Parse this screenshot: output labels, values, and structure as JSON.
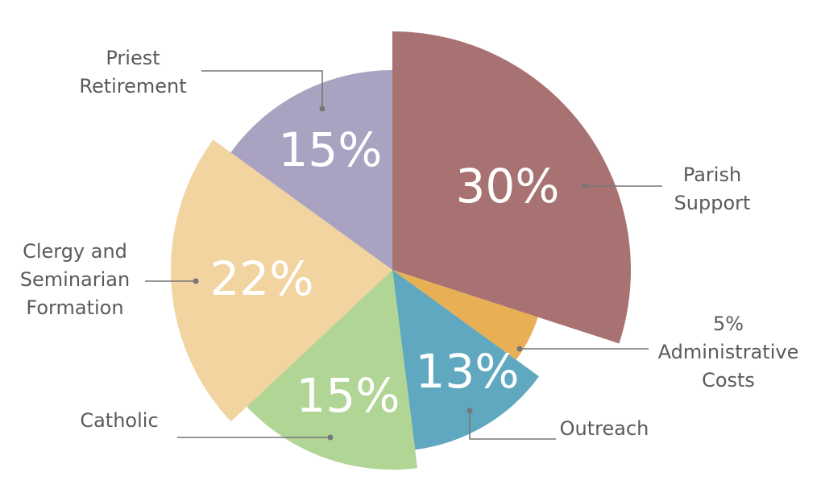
{
  "chart_data": {
    "type": "pie",
    "categories": [
      [
        "Parish",
        "Support"
      ],
      [
        "Administrative",
        "Costs"
      ],
      [
        "Outreach"
      ],
      [
        "Catholic"
      ],
      [
        "Clergy and",
        "Seminarian",
        "Formation"
      ],
      [
        "Priest",
        "Retirement"
      ]
    ],
    "values": [
      30,
      5,
      13,
      15,
      22,
      15
    ],
    "value_labels": [
      "30%",
      "5%",
      "13%",
      "15%",
      "22%",
      "15%"
    ],
    "colors": [
      "#a87272",
      "#e8af55",
      "#5fa8bf",
      "#b1d594",
      "#f1d4a0",
      "#a9a2c1"
    ]
  }
}
